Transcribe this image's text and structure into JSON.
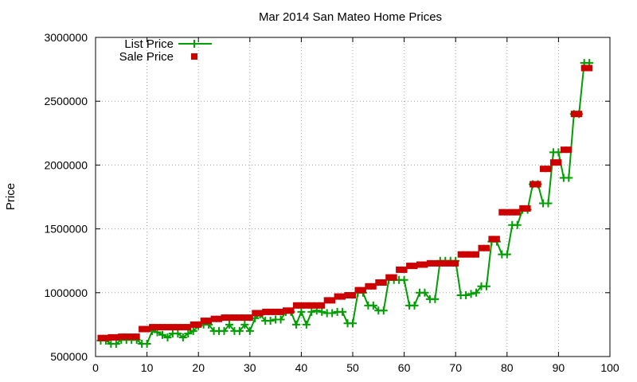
{
  "chart_data": {
    "type": "line",
    "title": "Mar 2014 San Mateo Home Prices",
    "xlabel": "",
    "ylabel": "Price",
    "xlim": [
      0,
      100
    ],
    "ylim": [
      500000,
      3000000
    ],
    "x_ticks": [
      0,
      10,
      20,
      30,
      40,
      50,
      60,
      70,
      80,
      90,
      100
    ],
    "y_ticks": [
      500000,
      1000000,
      1500000,
      2000000,
      2500000,
      3000000
    ],
    "grid": true,
    "legend_position": "top-left",
    "colors": {
      "list": "#009e00",
      "sale": "#cc0000"
    },
    "series": [
      {
        "name": "List Price",
        "style": "line+cross",
        "x": [
          1,
          2,
          3,
          4,
          5,
          6,
          7,
          8,
          9,
          10,
          11,
          12,
          13,
          14,
          15,
          16,
          17,
          18,
          19,
          20,
          21,
          22,
          23,
          24,
          25,
          26,
          27,
          28,
          29,
          30,
          31,
          32,
          33,
          34,
          35,
          36,
          37,
          38,
          39,
          40,
          41,
          42,
          43,
          44,
          45,
          46,
          47,
          48,
          49,
          50,
          51,
          52,
          53,
          54,
          55,
          56,
          57,
          58,
          59,
          60,
          61,
          62,
          63,
          64,
          65,
          66,
          67,
          68,
          69,
          70,
          71,
          72,
          73,
          74,
          75,
          76,
          77,
          78,
          79,
          80,
          81,
          82,
          83,
          84,
          85,
          86,
          87,
          88,
          89,
          90,
          91,
          92,
          93,
          94,
          95,
          96
        ],
        "values": [
          625000,
          625000,
          600000,
          600000,
          630000,
          630000,
          630000,
          630000,
          600000,
          600000,
          700000,
          690000,
          670000,
          650000,
          680000,
          680000,
          650000,
          680000,
          700000,
          740000,
          750000,
          750000,
          700000,
          700000,
          700000,
          750000,
          700000,
          700000,
          750000,
          700000,
          800000,
          830000,
          780000,
          780000,
          790000,
          790000,
          850000,
          850000,
          750000,
          850000,
          750000,
          850000,
          860000,
          850000,
          840000,
          840000,
          850000,
          850000,
          760000,
          760000,
          1000000,
          1000000,
          900000,
          900000,
          860000,
          860000,
          1100000,
          1100000,
          1100000,
          1100000,
          900000,
          900000,
          1000000,
          1000000,
          950000,
          950000,
          1250000,
          1250000,
          1250000,
          1250000,
          980000,
          980000,
          990000,
          1000000,
          1050000,
          1050000,
          1400000,
          1400000,
          1300000,
          1300000,
          1530000,
          1530000,
          1650000,
          1650000,
          1850000,
          1850000,
          1700000,
          1700000,
          2100000,
          2100000,
          1900000,
          1900000,
          2400000,
          2400000,
          2800000,
          2800000
        ]
      },
      {
        "name": "Sale Price",
        "style": "square-points",
        "x": [
          1,
          2,
          3,
          4,
          5,
          6,
          7,
          8,
          9,
          10,
          11,
          12,
          13,
          14,
          15,
          16,
          17,
          18,
          19,
          20,
          21,
          22,
          23,
          24,
          25,
          26,
          27,
          28,
          29,
          30,
          31,
          32,
          33,
          34,
          35,
          36,
          37,
          38,
          39,
          40,
          41,
          42,
          43,
          44,
          45,
          46,
          47,
          48,
          49,
          50,
          51,
          52,
          53,
          54,
          55,
          56,
          57,
          58,
          59,
          60,
          61,
          62,
          63,
          64,
          65,
          66,
          67,
          68,
          69,
          70,
          71,
          72,
          73,
          74,
          75,
          76,
          77,
          78,
          79,
          80,
          81,
          82,
          83,
          84,
          85,
          86,
          87,
          88,
          89,
          90,
          91,
          92,
          93,
          94,
          95,
          96
        ],
        "values": [
          645000,
          645000,
          650000,
          650000,
          655000,
          655000,
          655000,
          655000,
          715000,
          715000,
          730000,
          730000,
          730000,
          730000,
          730000,
          730000,
          730000,
          730000,
          750000,
          750000,
          780000,
          780000,
          795000,
          795000,
          805000,
          805000,
          805000,
          805000,
          805000,
          805000,
          840000,
          840000,
          850000,
          850000,
          850000,
          850000,
          860000,
          860000,
          900000,
          900000,
          900000,
          900000,
          900000,
          900000,
          940000,
          940000,
          970000,
          970000,
          980000,
          980000,
          1020000,
          1020000,
          1050000,
          1050000,
          1080000,
          1080000,
          1120000,
          1120000,
          1180000,
          1180000,
          1210000,
          1210000,
          1220000,
          1220000,
          1230000,
          1230000,
          1230000,
          1230000,
          1230000,
          1230000,
          1300000,
          1300000,
          1300000,
          1300000,
          1350000,
          1350000,
          1420000,
          1420000,
          1630000,
          1630000,
          1630000,
          1630000,
          1660000,
          1660000,
          1850000,
          1850000,
          1970000,
          1970000,
          2020000,
          2020000,
          2120000,
          2120000,
          2400000,
          2400000,
          2760000,
          2760000
        ]
      }
    ]
  }
}
